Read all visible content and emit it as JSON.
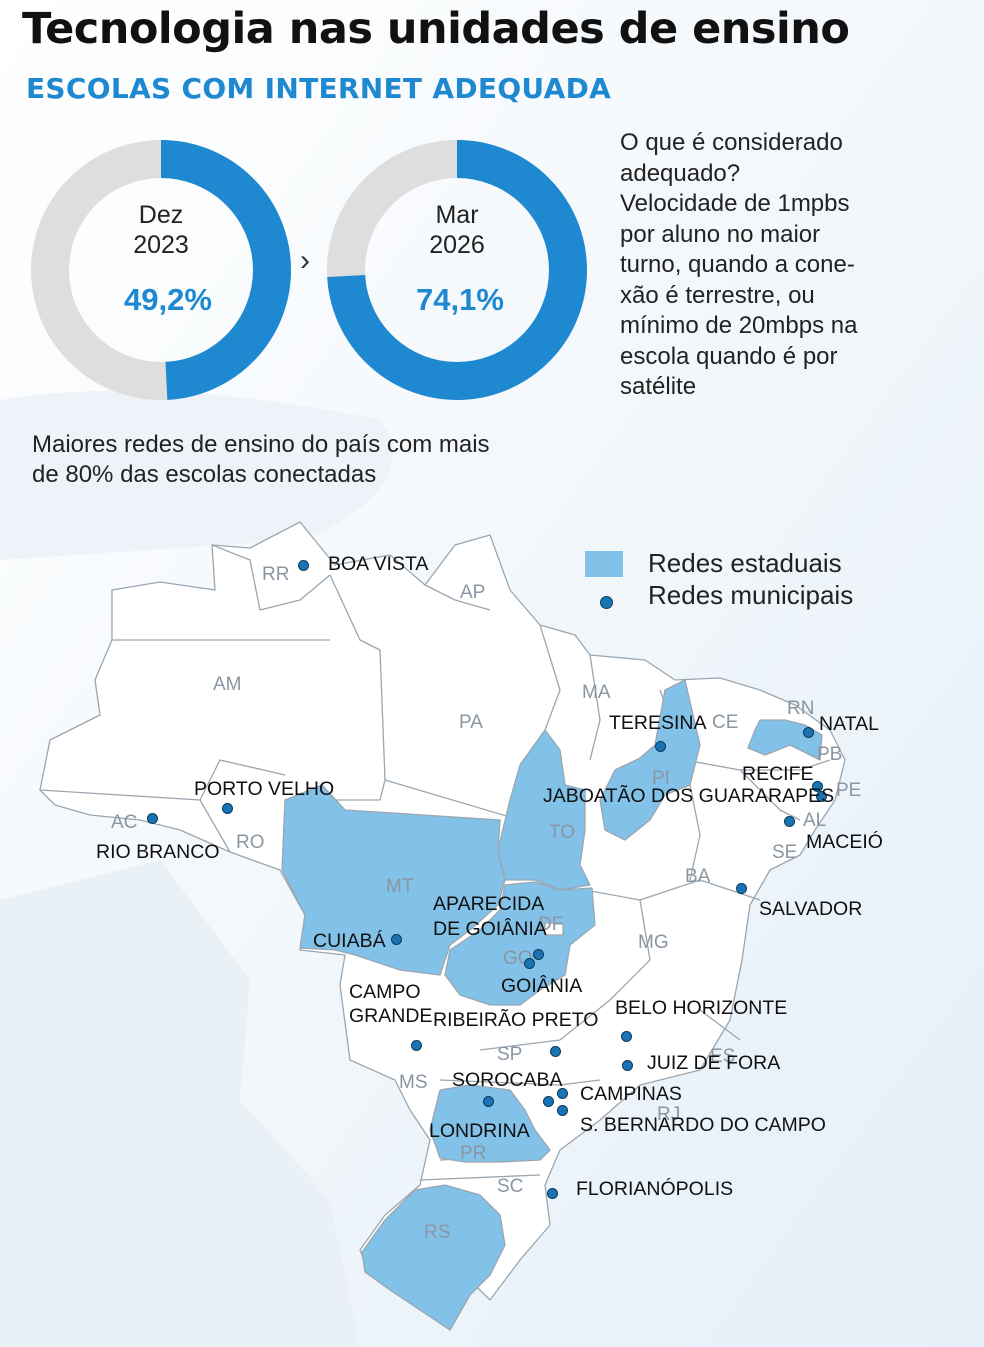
{
  "title": "Tecnologia nas unidades de ensino",
  "subtitle": "ESCOLAS COM INTERNET ADEQUADA",
  "donuts": [
    {
      "period_line1": "Dez",
      "period_line2": "2023",
      "value_label": "49,2%",
      "percent": 49.2
    },
    {
      "period_line1": "Mar",
      "period_line2": "2026",
      "value_label": "74,1%",
      "percent": 74.1
    }
  ],
  "arrow_symbol": "›",
  "definition": [
    "O que é considerado",
    "adequado?",
    "Velocidade de 1mpbs",
    "por aluno no maior",
    "turno, quando a cone-",
    "xão é terrestre, ou",
    "mínimo de 20mbps na",
    "escola quando é por",
    "satélite"
  ],
  "lead": [
    "Maiores redes de ensino do país com mais",
    "de 80% das escolas conectadas"
  ],
  "legend": {
    "state": "Redes estaduais",
    "municipal": "Redes municipais"
  },
  "colors": {
    "accent": "#1e88d0",
    "track": "#dedede",
    "state_fill": "#82c1e8",
    "map_fill": "#ffffff",
    "dot": "#1a74b4"
  },
  "state_labels": {
    "RR": "RR",
    "AP": "AP",
    "AM": "AM",
    "PA": "PA",
    "MA": "MA",
    "CE": "CE",
    "RN": "RN",
    "PB": "PB",
    "PE": "PE",
    "PI": "PI",
    "AL": "AL",
    "SE": "SE",
    "AC": "AC",
    "RO": "RO",
    "TO": "TO",
    "MT": "MT",
    "BA": "BA",
    "DF": "DF",
    "GO": "GO",
    "MG": "MG",
    "ES": "ES",
    "SP": "SP",
    "MS": "MS",
    "RJ": "RJ",
    "PR": "PR",
    "SC": "SC",
    "RS": "RS"
  },
  "state_networks": [
    "PI",
    "RN",
    "TO",
    "MT",
    "GO",
    "PR",
    "RS"
  ],
  "cities": {
    "boa_vista": "BOA VISTA",
    "teresina": "TERESINA",
    "natal": "NATAL",
    "recife": "RECIFE",
    "jaboatao": "JABOATÃO DOS GUARARAPES",
    "maceio": "MACEIÓ",
    "porto_velho": "PORTO VELHO",
    "rio_branco": "RIO BRANCO",
    "salvador": "SALVADOR",
    "aparecida_1": "APARECIDA",
    "aparecida_2": "DE GOIÂNIA",
    "cuiaba": "CUIABÁ",
    "goiania": "GOIÂNIA",
    "campo_grande_1": "CAMPO",
    "campo_grande_2": "GRANDE",
    "ribeirao": "RIBEIRÃO PRETO",
    "belo_horizonte": "BELO HORIZONTE",
    "juiz_de_fora": "JUIZ DE FORA",
    "sorocaba": "SOROCABA",
    "campinas": "CAMPINAS",
    "sbc": "S. BERNARDO DO CAMPO",
    "londrina": "LONDRINA",
    "florianopolis": "FLORIANÓPOLIS"
  }
}
